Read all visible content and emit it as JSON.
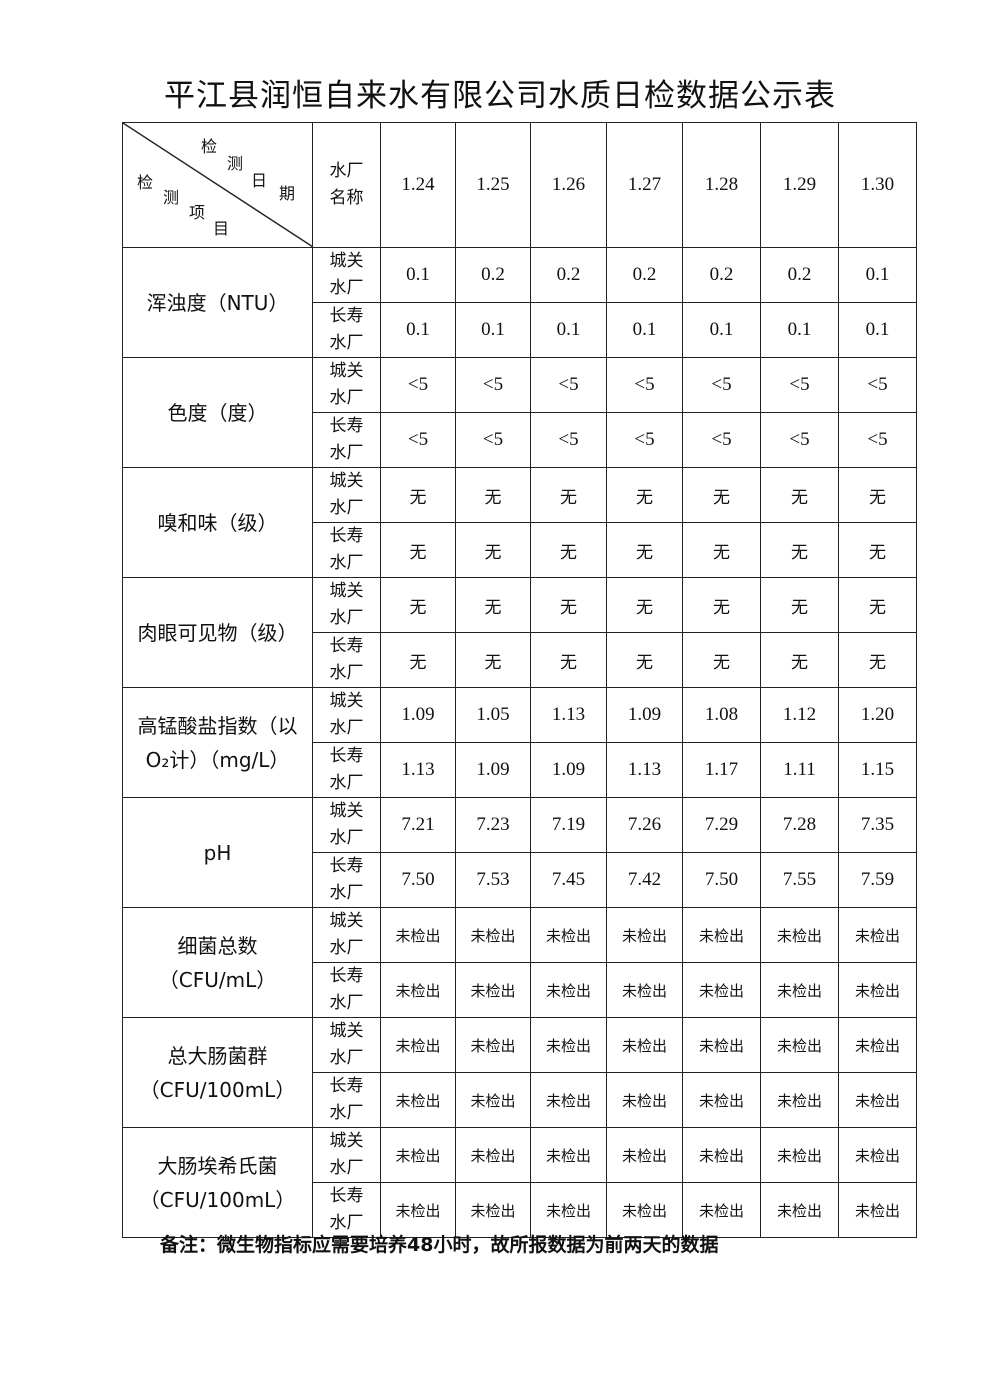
{
  "title": "平江县润恒自来水有限公司水质日检数据公示表",
  "header": {
    "corner_top": [
      "检",
      "测",
      "日",
      "期"
    ],
    "corner_bottom": [
      "检",
      "测",
      "项",
      "目"
    ],
    "plant_col": "水厂名称",
    "dates": [
      "1.24",
      "1.25",
      "1.26",
      "1.27",
      "1.28",
      "1.29",
      "1.30"
    ]
  },
  "plants": [
    "城关水厂",
    "长寿水厂"
  ],
  "rows": [
    {
      "item": "浑浊度（NTU）",
      "values": [
        [
          "0.1",
          "0.2",
          "0.2",
          "0.2",
          "0.2",
          "0.2",
          "0.1"
        ],
        [
          "0.1",
          "0.1",
          "0.1",
          "0.1",
          "0.1",
          "0.1",
          "0.1"
        ]
      ]
    },
    {
      "item": "色度（度）",
      "values": [
        [
          "<5",
          "<5",
          "<5",
          "<5",
          "<5",
          "<5",
          "<5"
        ],
        [
          "<5",
          "<5",
          "<5",
          "<5",
          "<5",
          "<5",
          "<5"
        ]
      ]
    },
    {
      "item": "嗅和味（级）",
      "values": [
        [
          "无",
          "无",
          "无",
          "无",
          "无",
          "无",
          "无"
        ],
        [
          "无",
          "无",
          "无",
          "无",
          "无",
          "无",
          "无"
        ]
      ]
    },
    {
      "item": "肉眼可见物（级）",
      "values": [
        [
          "无",
          "无",
          "无",
          "无",
          "无",
          "无",
          "无"
        ],
        [
          "无",
          "无",
          "无",
          "无",
          "无",
          "无",
          "无"
        ]
      ]
    },
    {
      "item": "高锰酸盐指数（以O₂计）（mg/L）",
      "values": [
        [
          "1.09",
          "1.05",
          "1.13",
          "1.09",
          "1.08",
          "1.12",
          "1.20"
        ],
        [
          "1.13",
          "1.09",
          "1.09",
          "1.13",
          "1.17",
          "1.11",
          "1.15"
        ]
      ]
    },
    {
      "item": "pH",
      "values": [
        [
          "7.21",
          "7.23",
          "7.19",
          "7.26",
          "7.29",
          "7.28",
          "7.35"
        ],
        [
          "7.50",
          "7.53",
          "7.45",
          "7.42",
          "7.50",
          "7.55",
          "7.59"
        ]
      ]
    },
    {
      "item": "细菌总数（CFU/mL）",
      "values": [
        [
          "未检出",
          "未检出",
          "未检出",
          "未检出",
          "未检出",
          "未检出",
          "未检出"
        ],
        [
          "未检出",
          "未检出",
          "未检出",
          "未检出",
          "未检出",
          "未检出",
          "未检出"
        ]
      ]
    },
    {
      "item": "总大肠菌群（CFU/100mL）",
      "values": [
        [
          "未检出",
          "未检出",
          "未检出",
          "未检出",
          "未检出",
          "未检出",
          "未检出"
        ],
        [
          "未检出",
          "未检出",
          "未检出",
          "未检出",
          "未检出",
          "未检出",
          "未检出"
        ]
      ]
    },
    {
      "item": "大肠埃希氏菌（CFU/100mL）",
      "values": [
        [
          "未检出",
          "未检出",
          "未检出",
          "未检出",
          "未检出",
          "未检出",
          "未检出"
        ],
        [
          "未检出",
          "未检出",
          "未检出",
          "未检出",
          "未检出",
          "未检出",
          "未检出"
        ]
      ]
    }
  ],
  "note": "备注：微生物指标应需要培养48小时，故所报数据为前两天的数据"
}
